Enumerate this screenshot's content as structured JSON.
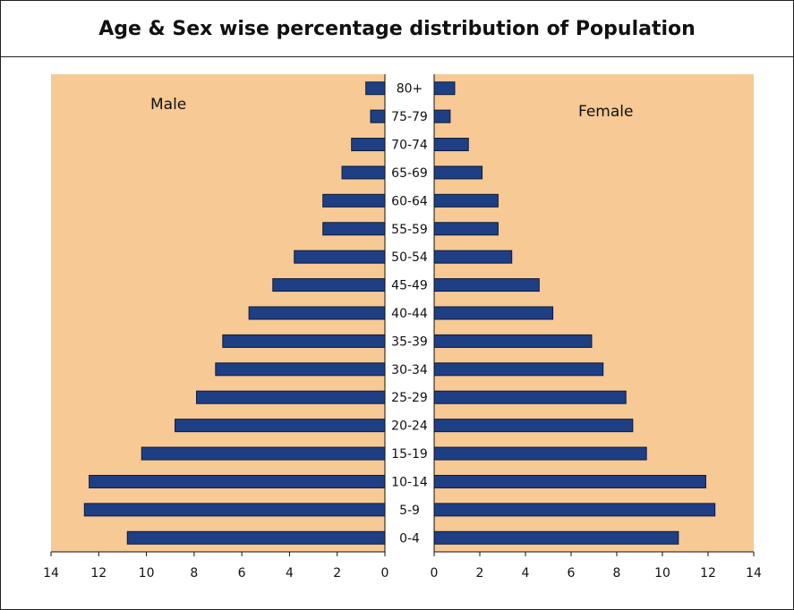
{
  "chart_data": {
    "type": "bar",
    "title": "Age & Sex wise percentage distribution of Population",
    "colors": {
      "bar": "#1f3f85",
      "plot_bg": "#f6c995"
    },
    "categories": [
      "0-4",
      "5-9",
      "10-14",
      "15-19",
      "20-24",
      "25-29",
      "30-34",
      "35-39",
      "40-44",
      "45-49",
      "50-54",
      "55-59",
      "60-64",
      "65-69",
      "70-74",
      "75-79",
      "80+"
    ],
    "series": [
      {
        "name": "Male",
        "values": [
          10.8,
          12.6,
          12.4,
          10.2,
          8.8,
          7.9,
          7.1,
          6.8,
          5.7,
          4.7,
          3.8,
          2.6,
          2.6,
          1.8,
          1.4,
          0.6,
          0.8
        ]
      },
      {
        "name": "Female",
        "values": [
          10.7,
          12.3,
          11.9,
          9.3,
          8.7,
          8.4,
          7.4,
          6.9,
          5.2,
          4.6,
          3.4,
          2.8,
          2.8,
          2.1,
          1.5,
          0.7,
          0.9
        ]
      }
    ],
    "xlim": [
      0,
      14
    ],
    "x_ticks": [
      "14",
      "12",
      "10",
      "8",
      "6",
      "4",
      "2",
      "0"
    ],
    "x_ticks_right": [
      "0",
      "2",
      "4",
      "6",
      "8",
      "10",
      "12",
      "14"
    ]
  }
}
